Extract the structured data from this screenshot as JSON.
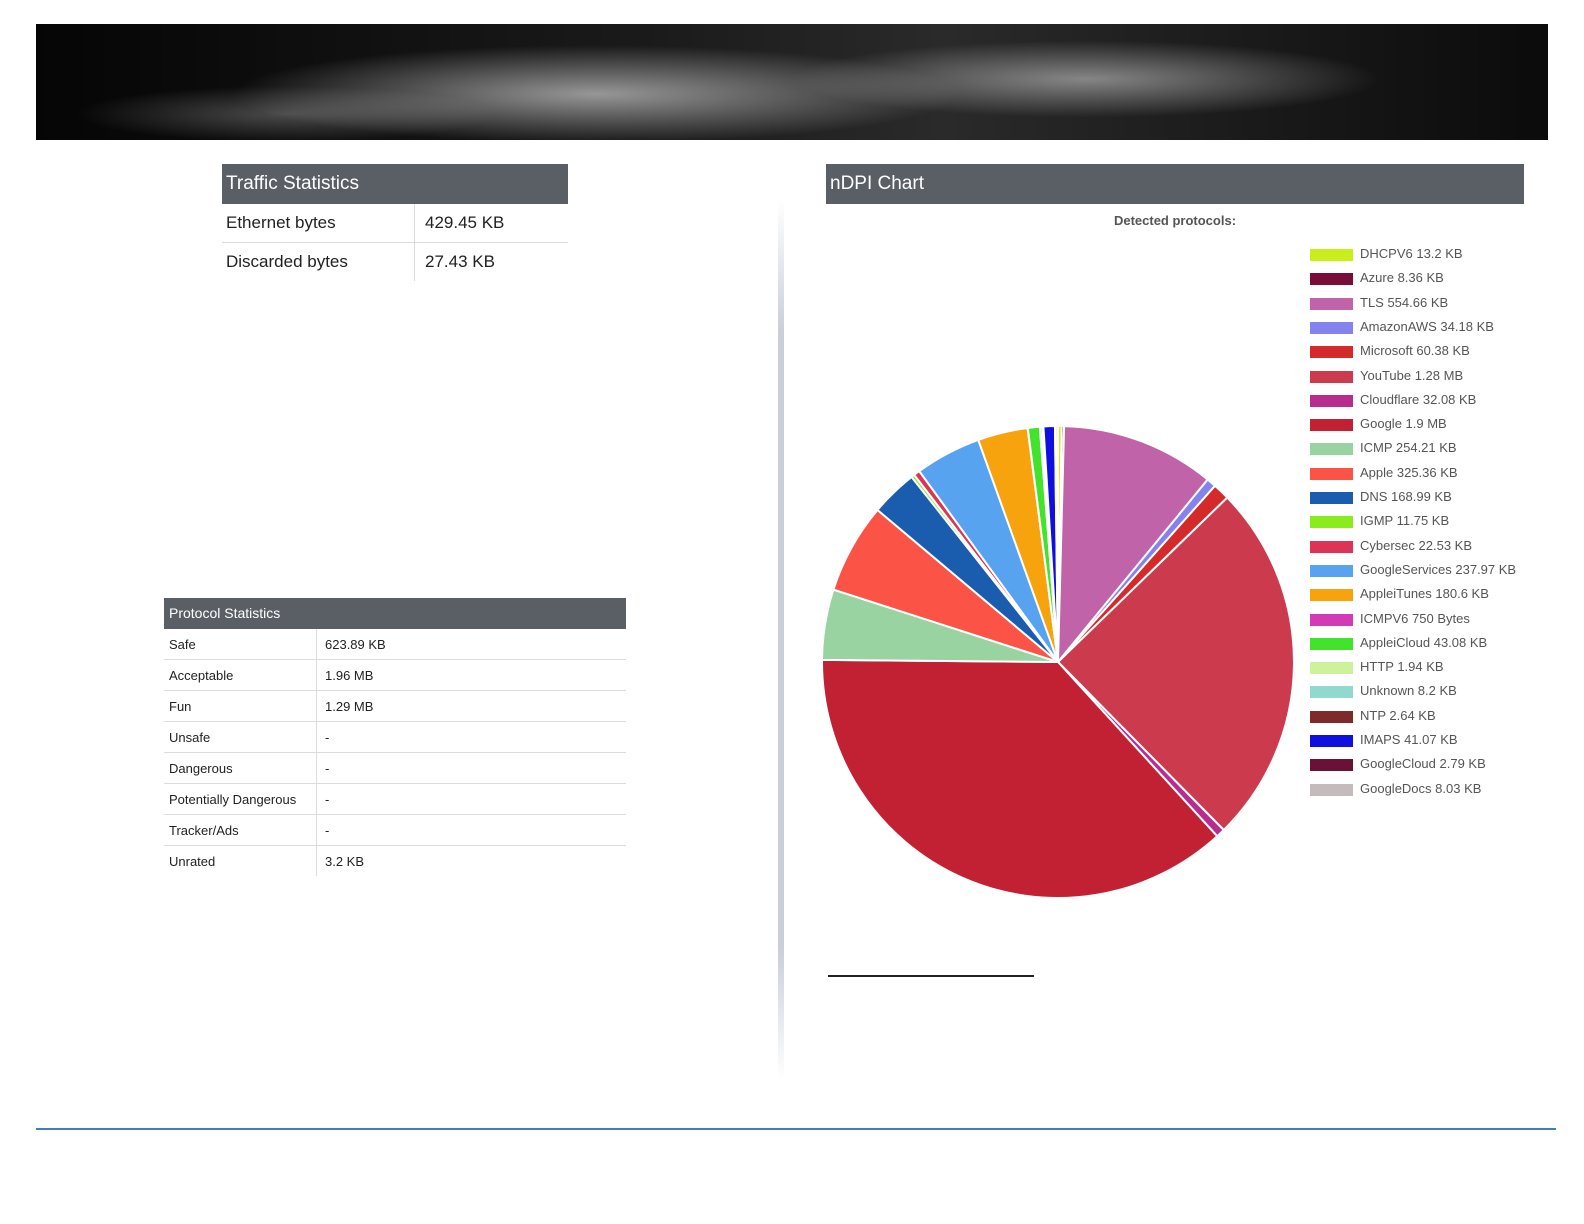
{
  "traffic": {
    "header": "Traffic Statistics",
    "rows": [
      {
        "label": "Ethernet bytes",
        "value": "429.45 KB"
      },
      {
        "label": "Discarded bytes",
        "value": "27.43 KB"
      }
    ]
  },
  "protocol": {
    "header": "Protocol Statistics",
    "rows": [
      {
        "label": "Safe",
        "value": "623.89 KB"
      },
      {
        "label": "Acceptable",
        "value": "1.96 MB"
      },
      {
        "label": "Fun",
        "value": "1.29 MB"
      },
      {
        "label": "Unsafe",
        "value": "-"
      },
      {
        "label": "Dangerous",
        "value": "-"
      },
      {
        "label": "Potentially Dangerous",
        "value": "-"
      },
      {
        "label": "Tracker/Ads",
        "value": "-"
      },
      {
        "label": "Unrated",
        "value": "3.2 KB"
      }
    ]
  },
  "ndpi": {
    "header": "nDPI Chart"
  },
  "chart_data": {
    "type": "pie",
    "title": "Detected protocols:",
    "legend": "right",
    "slices": [
      {
        "name": "DHCPV6 13.2 KB",
        "value": 13.2,
        "color": "#c8ef1c"
      },
      {
        "name": "Azure 8.36 KB",
        "value": 8.36,
        "color": "#7a0d38"
      },
      {
        "name": "TLS 554.66 KB",
        "value": 554.66,
        "color": "#c063a8"
      },
      {
        "name": "AmazonAWS 34.18 KB",
        "value": 34.18,
        "color": "#8482ec"
      },
      {
        "name": "Microsoft 60.38 KB",
        "value": 60.38,
        "color": "#d42a2a"
      },
      {
        "name": "YouTube 1.28 MB",
        "value": 1310.72,
        "color": "#cc3b4d"
      },
      {
        "name": "Cloudflare 32.08 KB",
        "value": 32.08,
        "color": "#b72c8d"
      },
      {
        "name": "Google 1.9 MB",
        "value": 1945.6,
        "color": "#c22033"
      },
      {
        "name": "ICMP 254.21 KB",
        "value": 254.21,
        "color": "#9ad3a2"
      },
      {
        "name": "Apple 325.36 KB",
        "value": 325.36,
        "color": "#fb5346"
      },
      {
        "name": "DNS 168.99 KB",
        "value": 168.99,
        "color": "#1a5daf"
      },
      {
        "name": "IGMP 11.75 KB",
        "value": 11.75,
        "color": "#8aec1c"
      },
      {
        "name": "Cybersec 22.53 KB",
        "value": 22.53,
        "color": "#dc3357"
      },
      {
        "name": "GoogleServices 237.97 KB",
        "value": 237.97,
        "color": "#58a3ef"
      },
      {
        "name": "AppleiTunes 180.6 KB",
        "value": 180.6,
        "color": "#f7a30e"
      },
      {
        "name": "ICMPV6 750 Bytes",
        "value": 0.73,
        "color": "#d33ab5"
      },
      {
        "name": "AppleiCloud 43.08 KB",
        "value": 43.08,
        "color": "#43e22d"
      },
      {
        "name": "HTTP 1.94 KB",
        "value": 1.94,
        "color": "#cdf29b"
      },
      {
        "name": "Unknown 8.2 KB",
        "value": 8.2,
        "color": "#91d8cf"
      },
      {
        "name": "NTP 2.64 KB",
        "value": 2.64,
        "color": "#7e2a2a"
      },
      {
        "name": "IMAPS 41.07 KB",
        "value": 41.07,
        "color": "#0f0fe0"
      },
      {
        "name": "GoogleCloud 2.79 KB",
        "value": 2.79,
        "color": "#6a1235"
      },
      {
        "name": "GoogleDocs 8.03 KB",
        "value": 8.03,
        "color": "#c4bcbc"
      }
    ]
  }
}
